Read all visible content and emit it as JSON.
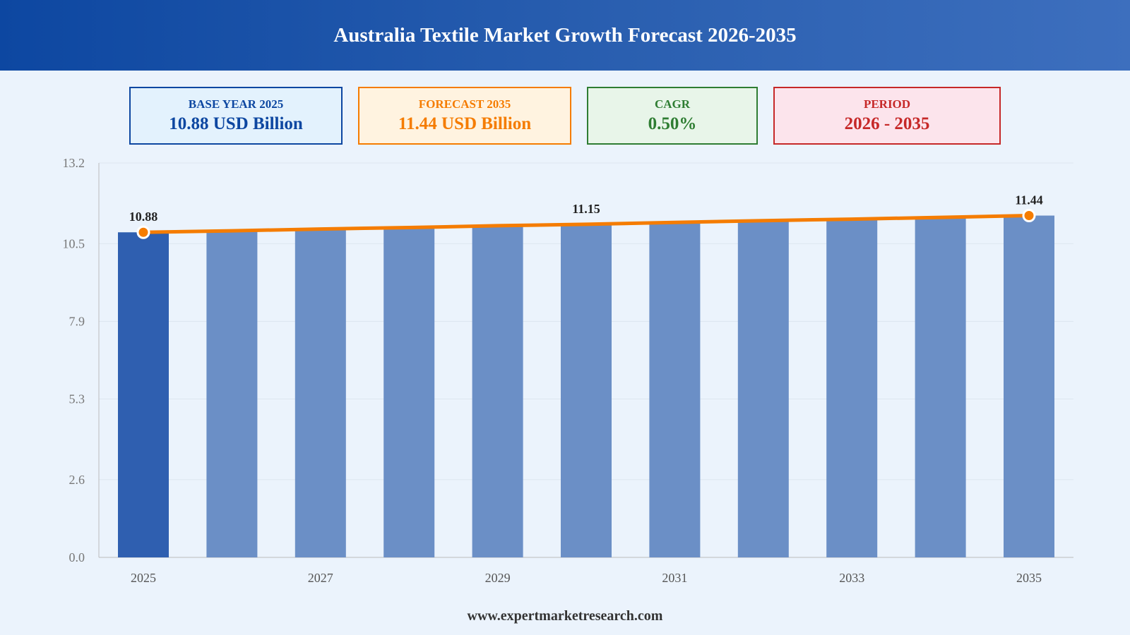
{
  "header": {
    "title": "Australia Textile Market Growth Forecast 2026-2035"
  },
  "cards": {
    "base": {
      "label": "BASE YEAR 2025",
      "value": "10.88 USD Billion"
    },
    "forecast": {
      "label": "FORECAST 2035",
      "value": "11.44 USD Billion"
    },
    "cagr": {
      "label": "CAGR",
      "value": "0.50%"
    },
    "period": {
      "label": "PERIOD",
      "value": "2026 - 2035"
    }
  },
  "footer": {
    "url": "www.expertmarketresearch.com"
  },
  "colors": {
    "base_bar": "#2f5fb0",
    "forecast_bar": "#6b8fc6",
    "line": "#f57c00",
    "grid": "#dde6f0",
    "axis_text": "#777777"
  },
  "chart_data": {
    "type": "bar",
    "categories": [
      "2025",
      "2026",
      "2027",
      "2028",
      "2029",
      "2030",
      "2031",
      "2032",
      "2033",
      "2034",
      "2035"
    ],
    "values": [
      10.88,
      10.93,
      10.99,
      11.04,
      11.1,
      11.15,
      11.21,
      11.27,
      11.32,
      11.38,
      11.44
    ],
    "xtick_labels": [
      "2025",
      "",
      "2027",
      "",
      "2029",
      "",
      "2031",
      "",
      "2033",
      "",
      "2035"
    ],
    "yticks": [
      "0.0",
      "2.6",
      "5.3",
      "7.9",
      "10.5",
      "13.2"
    ],
    "ylim": [
      0,
      13.2
    ],
    "data_labels": [
      {
        "index": 0,
        "text": "10.88"
      },
      {
        "index": 5,
        "text": "11.15"
      },
      {
        "index": 10,
        "text": "11.44"
      }
    ],
    "overlay": {
      "type": "line",
      "values": [
        10.88,
        10.93,
        10.99,
        11.04,
        11.1,
        11.15,
        11.21,
        11.27,
        11.32,
        11.38,
        11.44
      ],
      "markers_at": [
        0,
        10
      ]
    },
    "grid": true,
    "title": "",
    "xlabel": "",
    "ylabel": ""
  }
}
